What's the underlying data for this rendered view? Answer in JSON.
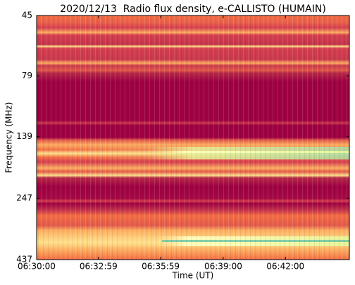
{
  "chart_data": {
    "type": "spectrogram",
    "title": "2020/12/13  Radio flux density, e-CALLISTO (HUMAIN)",
    "x_label": "Time (UT)",
    "y_label": "Frequency (MHz)",
    "xlim": [
      "06:30:00",
      "06:45:05"
    ],
    "xticks": [
      "06:30:00",
      "06:32:59",
      "06:35:59",
      "06:39:00",
      "06:42:00"
    ],
    "ylim": [
      45,
      437
    ],
    "yscale": "log",
    "y_inverted": true,
    "yticks": [
      45,
      79,
      139,
      247,
      437
    ]
  }
}
